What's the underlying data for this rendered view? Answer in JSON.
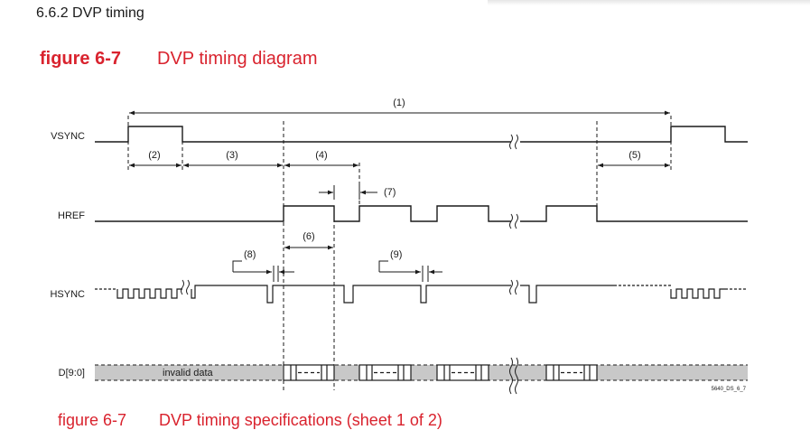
{
  "section": {
    "title": "6.6.2 DVP timing"
  },
  "figure": {
    "number": "figure 6-7",
    "title": "DVP timing diagram"
  },
  "signals": {
    "vsync": "VSYNC",
    "href": "HREF",
    "hsync": "HSYNC",
    "data": "D[9:0]"
  },
  "intervals": {
    "p1": "(1)",
    "p2": "(2)",
    "p3": "(3)",
    "p4": "(4)",
    "p5": "(5)",
    "p6": "(6)",
    "p7": "(7)",
    "p8": "(8)",
    "p9": "(9)"
  },
  "data_label": "invalid data",
  "figure_id": "5640_DS_6_7",
  "next_caption": {
    "number": "figure 6-7",
    "title": "DVP timing specifications (sheet 1 of 2)"
  },
  "colors": {
    "caption_red": "#d9232e",
    "line": "#1a1a1a",
    "data_fill": "#c8c8c8"
  }
}
